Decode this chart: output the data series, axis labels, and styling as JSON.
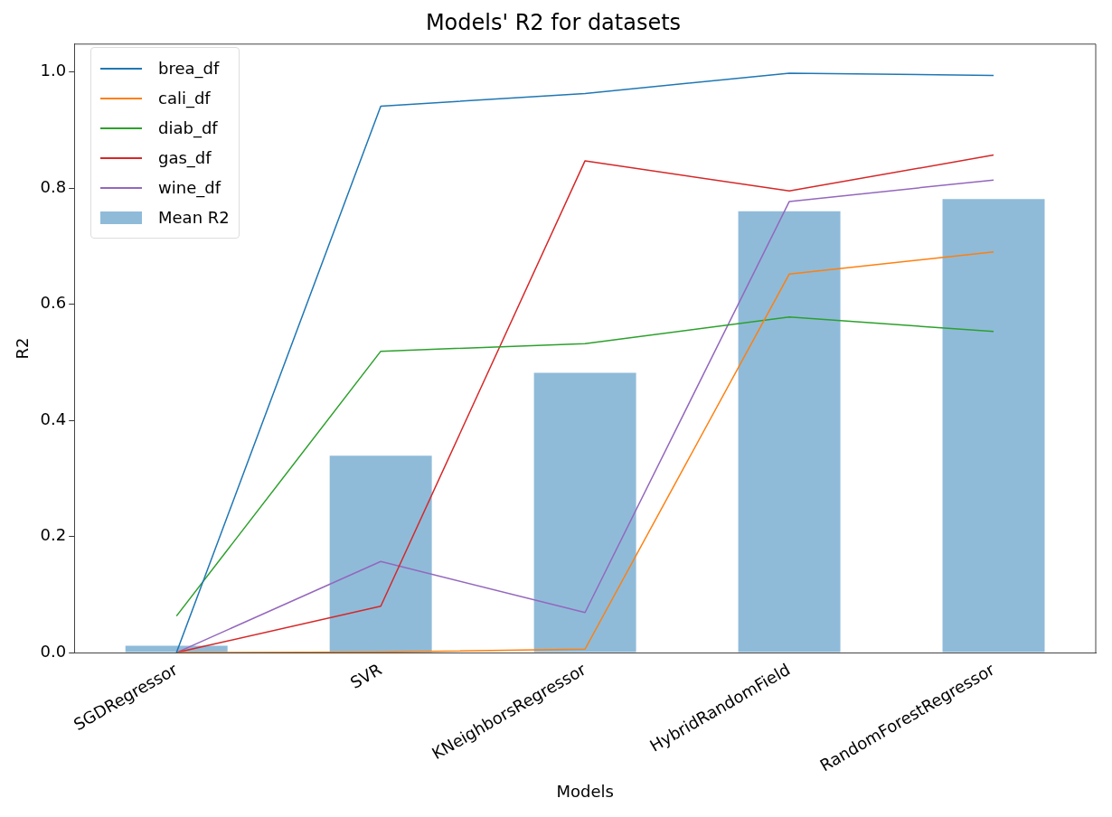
{
  "chart_data": {
    "type": "line",
    "title": "Models' R2 for datasets",
    "xlabel": "Models",
    "ylabel": "R2",
    "categories": [
      "SGDRegressor",
      "SVR",
      "KNeighborsRegressor",
      "HybridRandomField",
      "RandomForestRegressor"
    ],
    "series": [
      {
        "name": "brea_df",
        "color": "#1f77b4",
        "values": [
          0,
          0.941,
          0.963,
          0.998,
          0.994
        ]
      },
      {
        "name": "cali_df",
        "color": "#ff7f0e",
        "values": [
          0,
          0.001,
          0.006,
          0.652,
          0.69
        ]
      },
      {
        "name": "diab_df",
        "color": "#2ca02c",
        "values": [
          0.063,
          0.519,
          0.532,
          0.578,
          0.553
        ]
      },
      {
        "name": "gas_df",
        "color": "#d62728",
        "values": [
          0,
          0.08,
          0.847,
          0.795,
          0.857
        ]
      },
      {
        "name": "wine_df",
        "color": "#9467bd",
        "values": [
          0,
          0.157,
          0.069,
          0.777,
          0.814
        ]
      },
      {
        "name": "Mean R2",
        "type": "bar",
        "color": "#8fbbd9",
        "values": [
          0.012,
          0.339,
          0.482,
          0.76,
          0.781
        ]
      }
    ],
    "ylim": [
      0,
      1.048
    ],
    "yticks": [
      {
        "value": 0,
        "label": "0.0"
      },
      {
        "value": 0.2,
        "label": "0.2"
      },
      {
        "value": 0.4,
        "label": "0.4"
      },
      {
        "value": 0.6,
        "label": "0.6"
      },
      {
        "value": 0.8,
        "label": "0.8"
      },
      {
        "value": 1,
        "label": "1.0"
      }
    ],
    "grid": false,
    "legend": "top left",
    "marker": "none",
    "line_style": "solid"
  }
}
